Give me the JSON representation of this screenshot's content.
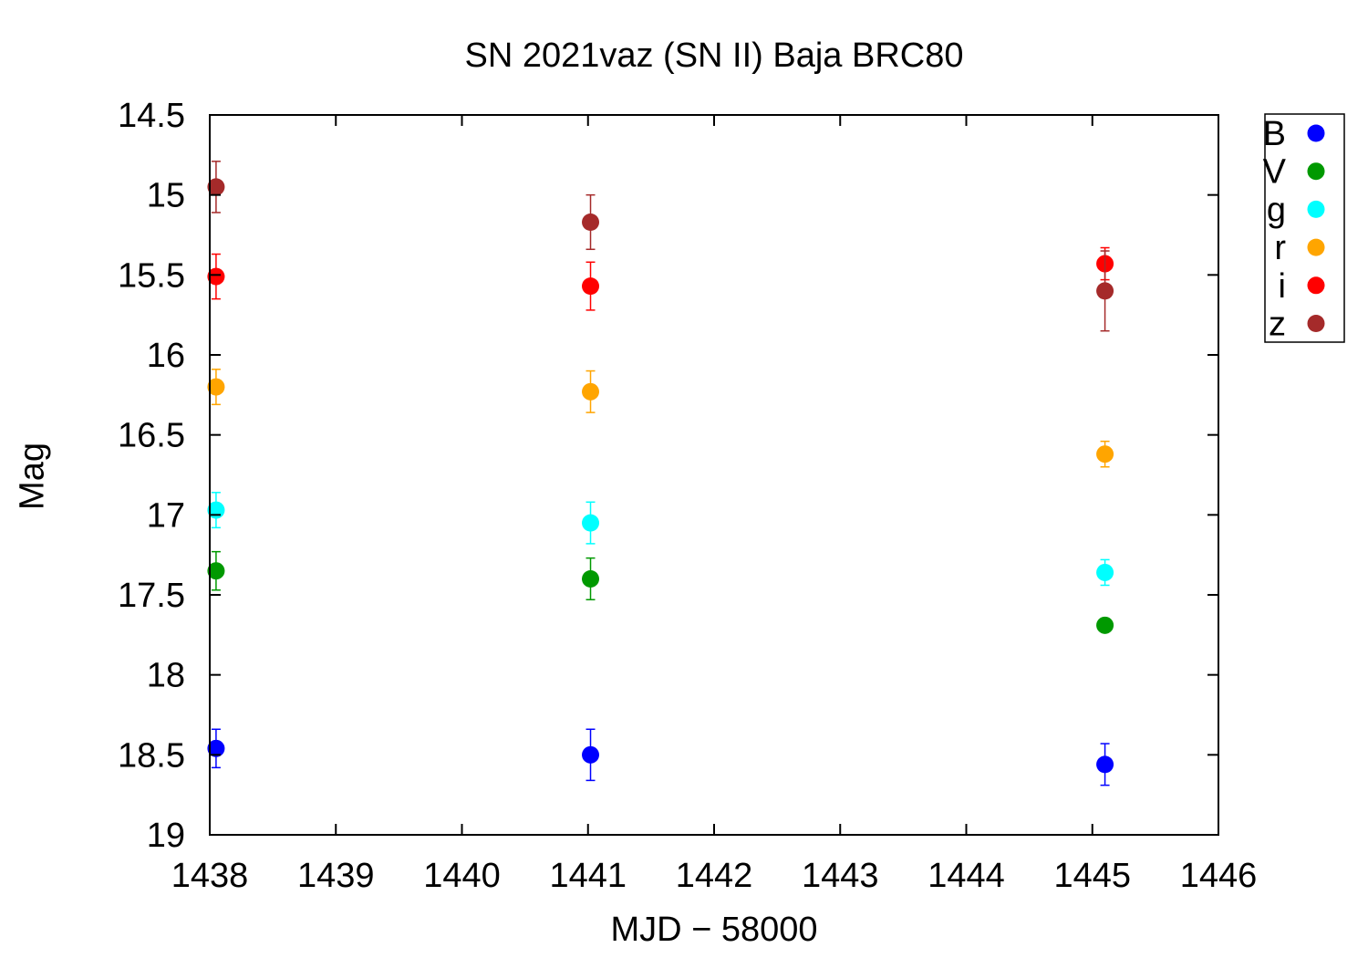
{
  "chart_data": {
    "type": "scatter",
    "title": "SN 2021vaz (SN II) Baja BRC80",
    "xlabel": "MJD − 58000",
    "ylabel": "Mag",
    "xlim": [
      1438,
      1446
    ],
    "ylim": [
      14.5,
      19
    ],
    "y_inverted": true,
    "x_ticks": [
      1438,
      1439,
      1440,
      1441,
      1442,
      1443,
      1444,
      1445,
      1446
    ],
    "y_ticks": [
      14.5,
      15,
      15.5,
      16,
      16.5,
      17,
      17.5,
      18,
      18.5,
      19
    ],
    "grid": false,
    "legend_position": "top-right-outside",
    "series": [
      {
        "name": "B",
        "color": "#0000ff",
        "points": [
          {
            "x": 1438.05,
            "y": 18.46,
            "err": 0.12
          },
          {
            "x": 1441.02,
            "y": 18.5,
            "err": 0.16
          },
          {
            "x": 1445.1,
            "y": 18.56,
            "err": 0.13
          }
        ]
      },
      {
        "name": "V",
        "color": "#009900",
        "points": [
          {
            "x": 1438.05,
            "y": 17.35,
            "err": 0.12
          },
          {
            "x": 1441.02,
            "y": 17.4,
            "err": 0.13
          },
          {
            "x": 1445.1,
            "y": 17.69,
            "err": 0.04
          }
        ]
      },
      {
        "name": "g",
        "color": "#00ffff",
        "points": [
          {
            "x": 1438.05,
            "y": 16.97,
            "err": 0.11
          },
          {
            "x": 1441.02,
            "y": 17.05,
            "err": 0.13
          },
          {
            "x": 1445.1,
            "y": 17.36,
            "err": 0.08
          }
        ]
      },
      {
        "name": "r",
        "color": "#ffa500",
        "points": [
          {
            "x": 1438.05,
            "y": 16.2,
            "err": 0.11
          },
          {
            "x": 1441.02,
            "y": 16.23,
            "err": 0.13
          },
          {
            "x": 1445.1,
            "y": 16.62,
            "err": 0.08
          }
        ]
      },
      {
        "name": "i",
        "color": "#ff0000",
        "points": [
          {
            "x": 1438.05,
            "y": 15.51,
            "err": 0.14
          },
          {
            "x": 1441.02,
            "y": 15.57,
            "err": 0.15
          },
          {
            "x": 1445.1,
            "y": 15.43,
            "err": 0.1
          }
        ]
      },
      {
        "name": "z",
        "color": "#a52a2a",
        "points": [
          {
            "x": 1438.05,
            "y": 14.95,
            "err": 0.16
          },
          {
            "x": 1441.02,
            "y": 15.17,
            "err": 0.17
          },
          {
            "x": 1445.1,
            "y": 15.6,
            "err": 0.25
          }
        ]
      }
    ]
  }
}
